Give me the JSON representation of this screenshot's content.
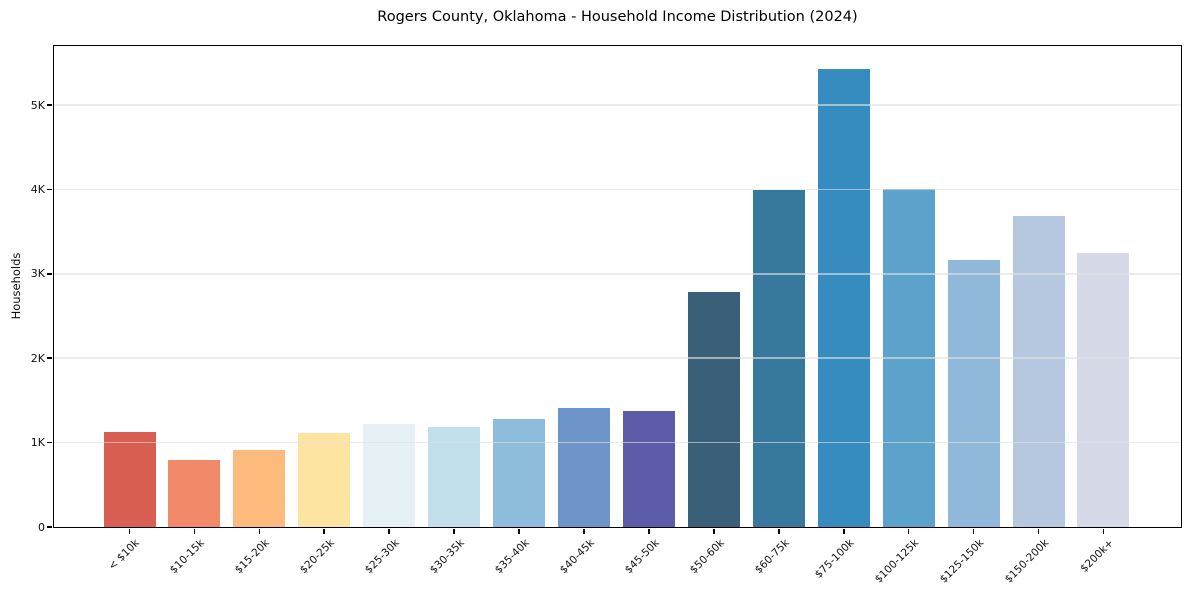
{
  "figure": {
    "background": "#ffffff"
  },
  "chart_data": {
    "type": "bar",
    "title": "Rogers County, Oklahoma - Household Income Distribution (2024)",
    "xlabel": "",
    "ylabel": "Households",
    "categories": [
      "< $10k",
      "$10-15k",
      "$15-20k",
      "$20-25k",
      "$25-30k",
      "$30-35k",
      "$35-40k",
      "$40-45k",
      "$45-50k",
      "$50-60k",
      "$60-75k",
      "$75-100k",
      "$100-125k",
      "$125-150k",
      "$150-200k",
      "$200k+"
    ],
    "values": [
      1130,
      800,
      910,
      1110,
      1220,
      1180,
      1280,
      1410,
      1370,
      2780,
      3990,
      5430,
      4010,
      3170,
      3690,
      3250
    ],
    "bar_colors": [
      "#d85f52",
      "#f28a6a",
      "#fcba7d",
      "#fde5a1",
      "#e6f1f6",
      "#c2e0ec",
      "#8ebcdc",
      "#6e95ca",
      "#5c5ca8",
      "#395f79",
      "#37789d",
      "#368cbf",
      "#5ba3cb",
      "#8fb8da",
      "#b5c8e0",
      "#d6d9e7"
    ],
    "ylim": [
      0,
      5700
    ],
    "yticks": [
      {
        "value": 0,
        "label": "0"
      },
      {
        "value": 1000,
        "label": "1K"
      },
      {
        "value": 2000,
        "label": "2K"
      },
      {
        "value": 3000,
        "label": "3K"
      },
      {
        "value": 4000,
        "label": "4K"
      },
      {
        "value": 5000,
        "label": "5K"
      }
    ],
    "grid": "horizontal",
    "legend": "none",
    "colors": {
      "grid_color": "#ececec",
      "spine_color": "#000000",
      "tick_text_color": "#111111",
      "title_color": "#000000"
    }
  }
}
